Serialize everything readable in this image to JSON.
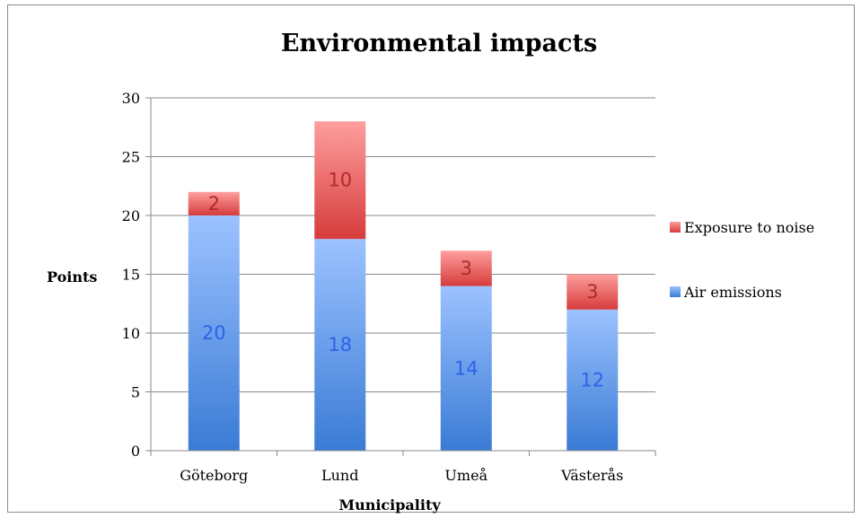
{
  "chart_data": {
    "type": "bar",
    "stacked": true,
    "title": "Environmental impacts",
    "xlabel": "Municipality",
    "ylabel": "Points",
    "categories": [
      "Göteborg",
      "Lund",
      "Umeå",
      "Västerås"
    ],
    "ylim": [
      0,
      30
    ],
    "yticks": [
      0,
      5,
      10,
      15,
      20,
      25,
      30
    ],
    "grid": true,
    "legend_position": "right",
    "series": [
      {
        "name": "Air emissions",
        "values": [
          20,
          18,
          14,
          12
        ],
        "color": "#4a86d4",
        "label_color": "#2e63e8"
      },
      {
        "name": "Exposure to noise",
        "values": [
          2,
          10,
          3,
          3
        ],
        "color": "#e05a5a",
        "label_color": "#b02a2a"
      }
    ]
  }
}
